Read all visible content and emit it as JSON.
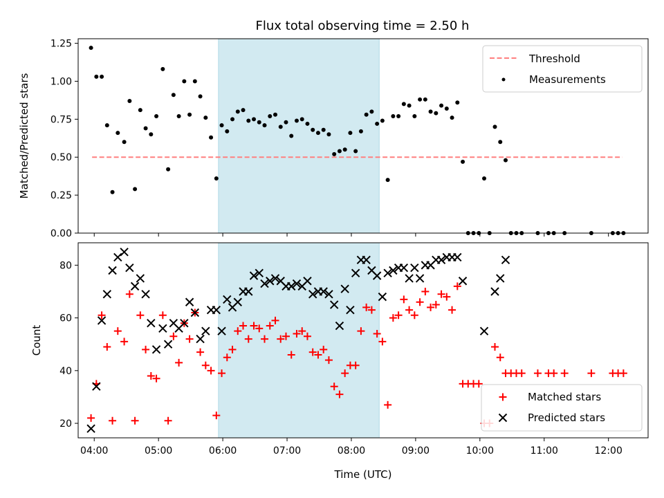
{
  "title": "Flux total observing time = 2.50 h",
  "colors": {
    "threshold": "#ff7f7f",
    "measurements": "#000000",
    "matched": "#ff0000",
    "predicted": "#000000",
    "highlight": "#add8e6"
  },
  "chart_data": [
    {
      "type": "scatter",
      "ylabel": "Matched/Predicted stars",
      "ylim": [
        0,
        1.28
      ],
      "yticks": [
        0,
        0.25,
        0.5,
        0.75,
        1.0,
        1.25
      ],
      "ytick_labels": [
        "0.00",
        "0.25",
        "0.50",
        "0.75",
        "1.00",
        "1.25"
      ],
      "xlim": [
        "03:45",
        "12:37"
      ],
      "highlight_span": [
        "05:56",
        "08:26"
      ],
      "legend": {
        "position": "top-right",
        "entries": [
          "Threshold",
          "Measurements"
        ]
      },
      "threshold": {
        "name": "Threshold",
        "y": 0.5,
        "x": [
          "03:58",
          "12:13"
        ],
        "style": "dashed"
      },
      "series": [
        {
          "name": "Measurements",
          "points": [
            [
              "03:57",
              1.22
            ],
            [
              "04:02",
              1.03
            ],
            [
              "04:07",
              1.03
            ],
            [
              "04:12",
              0.71
            ],
            [
              "04:17",
              0.27
            ],
            [
              "04:22",
              0.66
            ],
            [
              "04:28",
              0.6
            ],
            [
              "04:33",
              0.87
            ],
            [
              "04:38",
              0.29
            ],
            [
              "04:43",
              0.81
            ],
            [
              "04:48",
              0.69
            ],
            [
              "04:53",
              0.65
            ],
            [
              "04:58",
              0.77
            ],
            [
              "05:04",
              1.08
            ],
            [
              "05:09",
              0.42
            ],
            [
              "05:14",
              0.91
            ],
            [
              "05:19",
              0.77
            ],
            [
              "05:24",
              1.0
            ],
            [
              "05:29",
              0.78
            ],
            [
              "05:34",
              1.0
            ],
            [
              "05:39",
              0.9
            ],
            [
              "05:44",
              0.76
            ],
            [
              "05:49",
              0.63
            ],
            [
              "05:54",
              0.36
            ],
            [
              "05:59",
              0.71
            ],
            [
              "06:04",
              0.67
            ],
            [
              "06:09",
              0.75
            ],
            [
              "06:14",
              0.8
            ],
            [
              "06:19",
              0.81
            ],
            [
              "06:24",
              0.74
            ],
            [
              "06:29",
              0.75
            ],
            [
              "06:34",
              0.73
            ],
            [
              "06:39",
              0.71
            ],
            [
              "06:44",
              0.77
            ],
            [
              "06:49",
              0.78
            ],
            [
              "06:54",
              0.7
            ],
            [
              "06:59",
              0.73
            ],
            [
              "07:04",
              0.64
            ],
            [
              "07:09",
              0.74
            ],
            [
              "07:14",
              0.75
            ],
            [
              "07:19",
              0.72
            ],
            [
              "07:24",
              0.68
            ],
            [
              "07:29",
              0.66
            ],
            [
              "07:34",
              0.68
            ],
            [
              "07:39",
              0.65
            ],
            [
              "07:44",
              0.52
            ],
            [
              "07:49",
              0.54
            ],
            [
              "07:54",
              0.55
            ],
            [
              "07:59",
              0.66
            ],
            [
              "08:04",
              0.54
            ],
            [
              "08:09",
              0.67
            ],
            [
              "08:14",
              0.78
            ],
            [
              "08:19",
              0.8
            ],
            [
              "08:24",
              0.72
            ],
            [
              "08:29",
              0.74
            ],
            [
              "08:34",
              0.35
            ],
            [
              "08:39",
              0.77
            ],
            [
              "08:44",
              0.77
            ],
            [
              "08:49",
              0.85
            ],
            [
              "08:54",
              0.84
            ],
            [
              "08:59",
              0.77
            ],
            [
              "09:04",
              0.88
            ],
            [
              "09:09",
              0.88
            ],
            [
              "09:14",
              0.8
            ],
            [
              "09:19",
              0.79
            ],
            [
              "09:24",
              0.84
            ],
            [
              "09:29",
              0.82
            ],
            [
              "09:34",
              0.76
            ],
            [
              "09:39",
              0.86
            ],
            [
              "09:44",
              0.47
            ],
            [
              "09:49",
              0.0
            ],
            [
              "09:54",
              0.0
            ],
            [
              "09:59",
              0.0
            ],
            [
              "10:04",
              0.36
            ],
            [
              "10:09",
              0.0
            ],
            [
              "10:14",
              0.7
            ],
            [
              "10:19",
              0.6
            ],
            [
              "10:24",
              0.48
            ],
            [
              "10:29",
              0.0
            ],
            [
              "10:34",
              0.0
            ],
            [
              "10:39",
              0.0
            ],
            [
              "10:54",
              0.0
            ],
            [
              "11:04",
              0.0
            ],
            [
              "11:09",
              0.0
            ],
            [
              "11:19",
              0.0
            ],
            [
              "11:44",
              0.0
            ],
            [
              "12:04",
              0.0
            ],
            [
              "12:09",
              0.0
            ],
            [
              "12:14",
              0.0
            ]
          ]
        }
      ]
    },
    {
      "type": "scatter",
      "xlabel": "Time (UTC)",
      "ylabel": "Count",
      "ylim": [
        14.5,
        88.5
      ],
      "yticks": [
        20,
        40,
        60,
        80
      ],
      "ytick_labels": [
        "20",
        "40",
        "60",
        "80"
      ],
      "xlim": [
        "03:45",
        "12:37"
      ],
      "xticks": [
        "04:00",
        "05:00",
        "06:00",
        "07:00",
        "08:00",
        "09:00",
        "10:00",
        "11:00",
        "12:00"
      ],
      "highlight_span": [
        "05:56",
        "08:26"
      ],
      "legend": {
        "position": "bottom-right",
        "entries": [
          "Matched stars",
          "Predicted stars"
        ]
      },
      "series": [
        {
          "name": "Matched stars",
          "marker": "plus",
          "points": [
            [
              "03:57",
              22
            ],
            [
              "04:02",
              35
            ],
            [
              "04:07",
              61
            ],
            [
              "04:12",
              49
            ],
            [
              "04:17",
              21
            ],
            [
              "04:22",
              55
            ],
            [
              "04:28",
              51
            ],
            [
              "04:33",
              69
            ],
            [
              "04:38",
              21
            ],
            [
              "04:43",
              61
            ],
            [
              "04:48",
              48
            ],
            [
              "04:53",
              38
            ],
            [
              "04:58",
              37
            ],
            [
              "05:04",
              61
            ],
            [
              "05:09",
              21
            ],
            [
              "05:14",
              53
            ],
            [
              "05:19",
              43
            ],
            [
              "05:24",
              58
            ],
            [
              "05:29",
              52
            ],
            [
              "05:34",
              62
            ],
            [
              "05:39",
              47
            ],
            [
              "05:44",
              42
            ],
            [
              "05:49",
              40
            ],
            [
              "05:54",
              23
            ],
            [
              "05:59",
              39
            ],
            [
              "06:04",
              45
            ],
            [
              "06:09",
              48
            ],
            [
              "06:14",
              55
            ],
            [
              "06:19",
              57
            ],
            [
              "06:24",
              52
            ],
            [
              "06:29",
              57
            ],
            [
              "06:34",
              56
            ],
            [
              "06:39",
              52
            ],
            [
              "06:44",
              57
            ],
            [
              "06:49",
              59
            ],
            [
              "06:54",
              52
            ],
            [
              "06:59",
              53
            ],
            [
              "07:04",
              46
            ],
            [
              "07:09",
              54
            ],
            [
              "07:14",
              55
            ],
            [
              "07:19",
              53
            ],
            [
              "07:24",
              47
            ],
            [
              "07:29",
              46
            ],
            [
              "07:34",
              48
            ],
            [
              "07:39",
              44
            ],
            [
              "07:44",
              34
            ],
            [
              "07:49",
              31
            ],
            [
              "07:54",
              39
            ],
            [
              "07:59",
              42
            ],
            [
              "08:04",
              42
            ],
            [
              "08:09",
              55
            ],
            [
              "08:14",
              64
            ],
            [
              "08:19",
              63
            ],
            [
              "08:24",
              54
            ],
            [
              "08:29",
              51
            ],
            [
              "08:34",
              27
            ],
            [
              "08:39",
              60
            ],
            [
              "08:44",
              61
            ],
            [
              "08:49",
              67
            ],
            [
              "08:54",
              63
            ],
            [
              "08:59",
              61
            ],
            [
              "09:04",
              66
            ],
            [
              "09:09",
              70
            ],
            [
              "09:14",
              64
            ],
            [
              "09:19",
              65
            ],
            [
              "09:24",
              69
            ],
            [
              "09:29",
              68
            ],
            [
              "09:34",
              63
            ],
            [
              "09:39",
              72
            ],
            [
              "09:44",
              35
            ],
            [
              "09:49",
              35
            ],
            [
              "09:54",
              35
            ],
            [
              "09:59",
              35
            ],
            [
              "10:04",
              20
            ],
            [
              "10:09",
              20
            ],
            [
              "10:14",
              49
            ],
            [
              "10:19",
              45
            ],
            [
              "10:24",
              39
            ],
            [
              "10:29",
              39
            ],
            [
              "10:34",
              39
            ],
            [
              "10:39",
              39
            ],
            [
              "10:54",
              39
            ],
            [
              "11:04",
              39
            ],
            [
              "11:09",
              39
            ],
            [
              "11:19",
              39
            ],
            [
              "11:44",
              39
            ],
            [
              "12:04",
              39
            ],
            [
              "12:09",
              39
            ],
            [
              "12:14",
              39
            ]
          ]
        },
        {
          "name": "Predicted stars",
          "marker": "x",
          "points": [
            [
              "03:57",
              18
            ],
            [
              "04:02",
              34
            ],
            [
              "04:07",
              59
            ],
            [
              "04:12",
              69
            ],
            [
              "04:17",
              78
            ],
            [
              "04:22",
              83
            ],
            [
              "04:28",
              85
            ],
            [
              "04:33",
              79
            ],
            [
              "04:38",
              72
            ],
            [
              "04:43",
              75
            ],
            [
              "04:48",
              69
            ],
            [
              "04:53",
              58
            ],
            [
              "04:58",
              48
            ],
            [
              "05:04",
              56
            ],
            [
              "05:09",
              50
            ],
            [
              "05:14",
              58
            ],
            [
              "05:19",
              56
            ],
            [
              "05:24",
              58
            ],
            [
              "05:29",
              66
            ],
            [
              "05:34",
              62
            ],
            [
              "05:39",
              52
            ],
            [
              "05:44",
              55
            ],
            [
              "05:49",
              63
            ],
            [
              "05:54",
              63
            ],
            [
              "05:59",
              55
            ],
            [
              "06:04",
              67
            ],
            [
              "06:09",
              64
            ],
            [
              "06:14",
              66
            ],
            [
              "06:19",
              70
            ],
            [
              "06:24",
              70
            ],
            [
              "06:29",
              76
            ],
            [
              "06:34",
              77
            ],
            [
              "06:39",
              73
            ],
            [
              "06:44",
              74
            ],
            [
              "06:49",
              75
            ],
            [
              "06:54",
              74
            ],
            [
              "06:59",
              72
            ],
            [
              "07:04",
              72
            ],
            [
              "07:09",
              73
            ],
            [
              "07:14",
              72
            ],
            [
              "07:19",
              74
            ],
            [
              "07:24",
              69
            ],
            [
              "07:29",
              70
            ],
            [
              "07:34",
              70
            ],
            [
              "07:39",
              69
            ],
            [
              "07:44",
              65
            ],
            [
              "07:49",
              57
            ],
            [
              "07:54",
              71
            ],
            [
              "07:59",
              63
            ],
            [
              "08:04",
              77
            ],
            [
              "08:09",
              82
            ],
            [
              "08:14",
              82
            ],
            [
              "08:19",
              78
            ],
            [
              "08:24",
              76
            ],
            [
              "08:29",
              68
            ],
            [
              "08:34",
              77
            ],
            [
              "08:39",
              78
            ],
            [
              "08:44",
              79
            ],
            [
              "08:49",
              79
            ],
            [
              "08:54",
              75
            ],
            [
              "08:59",
              79
            ],
            [
              "09:04",
              75
            ],
            [
              "09:09",
              80
            ],
            [
              "09:14",
              80
            ],
            [
              "09:19",
              82
            ],
            [
              "09:24",
              82
            ],
            [
              "09:29",
              83
            ],
            [
              "09:34",
              83
            ],
            [
              "09:39",
              83
            ],
            [
              "09:44",
              74
            ],
            [
              "10:04",
              55
            ],
            [
              "10:14",
              70
            ],
            [
              "10:19",
              75
            ],
            [
              "10:24",
              82
            ]
          ]
        }
      ]
    }
  ]
}
